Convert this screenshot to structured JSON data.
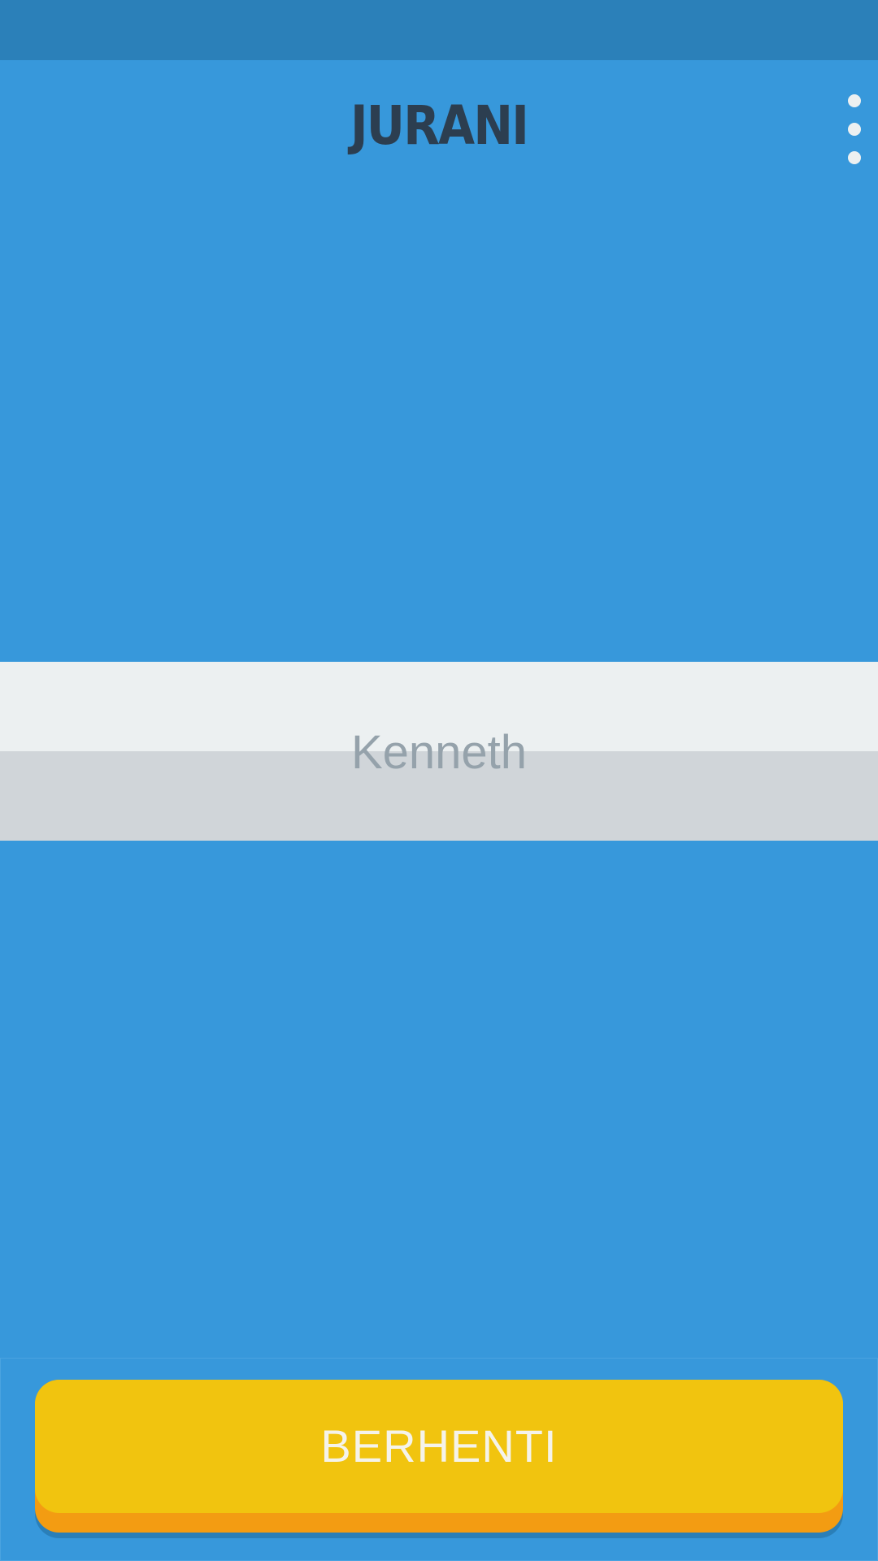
{
  "app": {
    "logo_text": "JURANI",
    "menu_icon": "more-vertical-icon"
  },
  "name_panel": {
    "name": "Kenneth"
  },
  "bottom": {
    "stop_label": "BERHENTI"
  },
  "colors": {
    "background": "#3798db",
    "status_bar": "#2b80b9",
    "logo": "#2c3e50",
    "panel_top": "#ecf0f1",
    "panel_bottom": "#d0d5d9",
    "name_text": "#95a2ab",
    "button": "#f1c40f",
    "button_edge": "#f39c12",
    "button_text": "#f5f3ea"
  }
}
